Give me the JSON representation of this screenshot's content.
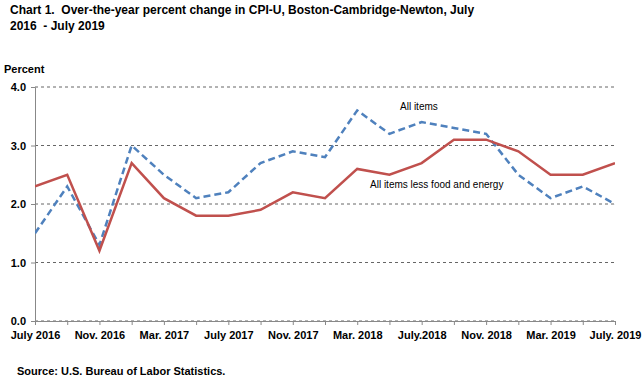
{
  "chart_data": {
    "type": "line",
    "title": "Chart 1.  Over-the-year percent change in CPI-U, Boston-Cambridge-Newton, July 2016  - July 2019",
    "y_label": "Percent",
    "source": "Source: U.S. Bureau of Labor Statistics.",
    "categories": [
      "July 2016",
      null,
      "Nov. 2016",
      null,
      "Mar. 2017",
      null,
      "July 2017",
      null,
      "Nov. 2017",
      null,
      "Mar. 2018",
      null,
      "July.2018",
      null,
      "Nov. 2018",
      null,
      "Mar. 2019",
      null,
      "July. 2019"
    ],
    "series": [
      {
        "name": "All items",
        "color": "#4f81bd",
        "line_style": "dashed",
        "values": [
          1.5,
          2.3,
          1.3,
          3.0,
          2.5,
          2.1,
          2.2,
          2.7,
          2.9,
          2.8,
          3.6,
          3.2,
          3.4,
          3.3,
          3.2,
          2.5,
          2.1,
          2.3,
          2.0
        ]
      },
      {
        "name": "All items less food and energy",
        "color": "#c0504d",
        "line_style": "solid",
        "values": [
          2.3,
          2.5,
          1.2,
          2.7,
          2.1,
          1.8,
          1.8,
          1.9,
          2.2,
          2.1,
          2.6,
          2.5,
          2.7,
          3.1,
          3.1,
          2.9,
          2.5,
          2.5,
          2.7
        ]
      }
    ],
    "ylim": [
      0,
      4
    ],
    "yticks": [
      {
        "value": 0,
        "label": "0.0"
      },
      {
        "value": 1,
        "label": "1.0"
      },
      {
        "value": 2,
        "label": "2.0"
      },
      {
        "value": 3,
        "label": "3.0"
      },
      {
        "value": 4,
        "label": "4.0"
      }
    ],
    "grid": true
  }
}
